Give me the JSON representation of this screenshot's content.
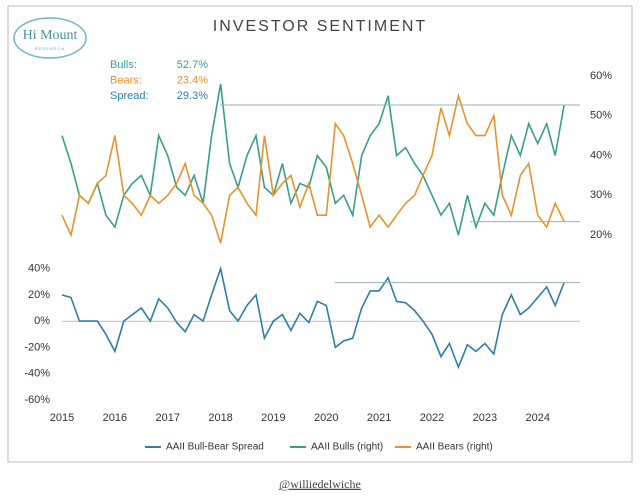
{
  "logo": {
    "name": "Hi Mount",
    "tagline": "RESEARCH"
  },
  "footer": "@williedelwiche",
  "chart_data": [
    {
      "type": "line",
      "title": "INVESTOR SENTIMENT",
      "x": [
        2015.0,
        2015.17,
        2015.33,
        2015.5,
        2015.67,
        2015.83,
        2016.0,
        2016.17,
        2016.33,
        2016.5,
        2016.67,
        2016.83,
        2017.0,
        2017.17,
        2017.33,
        2017.5,
        2017.67,
        2017.83,
        2018.0,
        2018.17,
        2018.33,
        2018.5,
        2018.67,
        2018.83,
        2019.0,
        2019.17,
        2019.33,
        2019.5,
        2019.67,
        2019.83,
        2020.0,
        2020.17,
        2020.33,
        2020.5,
        2020.67,
        2020.83,
        2021.0,
        2021.17,
        2021.33,
        2021.5,
        2021.67,
        2021.83,
        2022.0,
        2022.17,
        2022.33,
        2022.5,
        2022.67,
        2022.83,
        2023.0,
        2023.17,
        2023.33,
        2023.5,
        2023.67,
        2023.83,
        2024.0,
        2024.17,
        2024.33,
        2024.5
      ],
      "xlim": [
        2015,
        2024.8
      ],
      "y2lim": [
        15,
        64
      ],
      "y2ticks": [
        {
          "value": 20,
          "label": "20%"
        },
        {
          "value": 30,
          "label": "30%"
        },
        {
          "value": 40,
          "label": "40%"
        },
        {
          "value": 50,
          "label": "50%"
        },
        {
          "value": 60,
          "label": "60%"
        }
      ],
      "series": [
        {
          "name": "AAII Bulls (right)",
          "color": "#3a9e8a",
          "axis": "y2",
          "values": [
            45,
            38,
            30,
            28,
            33,
            25,
            22,
            30,
            33,
            35,
            30,
            45,
            40,
            32,
            30,
            35,
            28,
            45,
            58,
            38,
            32,
            40,
            45,
            32,
            30,
            38,
            28,
            33,
            32,
            40,
            37,
            28,
            30,
            25,
            40,
            45,
            48,
            55,
            40,
            42,
            38,
            35,
            30,
            25,
            28,
            20,
            30,
            22,
            28,
            25,
            35,
            45,
            40,
            48,
            43,
            48,
            40,
            52.7
          ]
        },
        {
          "name": "AAII Bears (right)",
          "color": "#e8922e",
          "axis": "y2",
          "values": [
            25,
            20,
            30,
            28,
            33,
            35,
            45,
            30,
            28,
            25,
            30,
            28,
            30,
            33,
            38,
            30,
            28,
            25,
            18,
            30,
            32,
            28,
            25,
            45,
            30,
            33,
            35,
            27,
            33,
            25,
            25,
            48,
            45,
            38,
            30,
            22,
            25,
            22,
            25,
            28,
            30,
            35,
            40,
            52,
            45,
            55,
            48,
            45,
            45,
            50,
            30,
            25,
            35,
            38,
            25,
            22,
            28,
            23.4
          ]
        }
      ],
      "annotations": [
        {
          "label": "Bulls:",
          "value": 52.7,
          "value_label": "52.7%",
          "color": "#3a9e8a"
        },
        {
          "label": "Bears:",
          "value": 23.4,
          "value_label": "23.4%",
          "color": "#e8922e"
        },
        {
          "label": "Spread:",
          "value": 29.3,
          "value_label": "29.3%",
          "color": "#2e7ea6"
        }
      ]
    },
    {
      "type": "line",
      "x": [
        2015.0,
        2015.17,
        2015.33,
        2015.5,
        2015.67,
        2015.83,
        2016.0,
        2016.17,
        2016.33,
        2016.5,
        2016.67,
        2016.83,
        2017.0,
        2017.17,
        2017.33,
        2017.5,
        2017.67,
        2017.83,
        2018.0,
        2018.17,
        2018.33,
        2018.5,
        2018.67,
        2018.83,
        2019.0,
        2019.17,
        2019.33,
        2019.5,
        2019.67,
        2019.83,
        2020.0,
        2020.17,
        2020.33,
        2020.5,
        2020.67,
        2020.83,
        2021.0,
        2021.17,
        2021.33,
        2021.5,
        2021.67,
        2021.83,
        2022.0,
        2022.17,
        2022.33,
        2022.5,
        2022.67,
        2022.83,
        2023.0,
        2023.17,
        2023.33,
        2023.5,
        2023.67,
        2023.83,
        2024.0,
        2024.17,
        2024.33,
        2024.5
      ],
      "xlim": [
        2015,
        2024.8
      ],
      "xticks": [
        2015,
        2016,
        2017,
        2018,
        2019,
        2020,
        2021,
        2022,
        2023,
        2024
      ],
      "ylim": [
        -60,
        45
      ],
      "yticks": [
        {
          "value": -60,
          "label": "-60%"
        },
        {
          "value": -40,
          "label": "-40%"
        },
        {
          "value": -20,
          "label": "-20%"
        },
        {
          "value": 0,
          "label": "0%"
        },
        {
          "value": 20,
          "label": "20%"
        },
        {
          "value": 40,
          "label": "40%"
        }
      ],
      "series": [
        {
          "name": "AAII Bull-Bear Spread",
          "color": "#2e7ea6",
          "values": [
            20,
            18,
            0,
            0,
            0,
            -10,
            -23,
            0,
            5,
            10,
            0,
            17,
            10,
            -1,
            -8,
            5,
            0,
            20,
            40,
            8,
            0,
            12,
            20,
            -13,
            0,
            5,
            -7,
            6,
            -1,
            15,
            12,
            -20,
            -15,
            -13,
            10,
            23,
            23,
            33,
            15,
            14,
            8,
            0,
            -10,
            -27,
            -17,
            -35,
            -18,
            -23,
            -17,
            -25,
            5,
            20,
            5,
            10,
            18,
            26,
            12,
            29.3
          ]
        }
      ]
    }
  ]
}
